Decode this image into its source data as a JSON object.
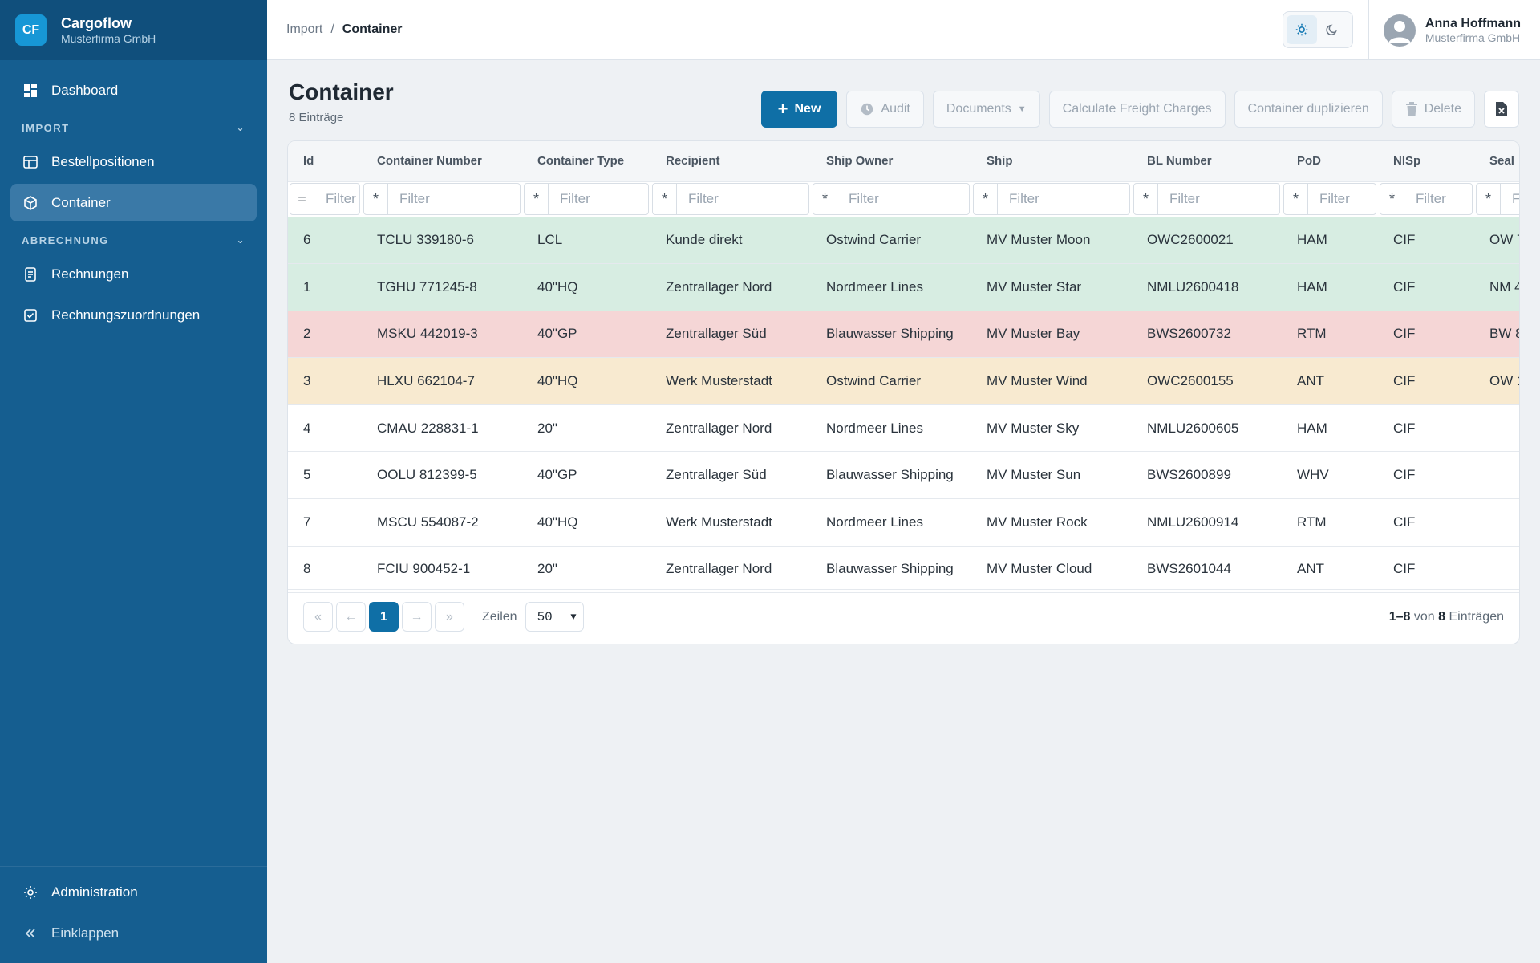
{
  "brand": {
    "logo": "CF",
    "name": "Cargoflow",
    "company": "Musterfirma GmbH"
  },
  "sidebar": {
    "dashboard": "Dashboard",
    "sections": [
      {
        "label": "IMPORT",
        "items": [
          "Bestellpositionen",
          "Container"
        ]
      },
      {
        "label": "ABRECHNUNG",
        "items": [
          "Rechnungen",
          "Rechnungszuordnungen"
        ]
      }
    ],
    "admin": "Administration",
    "collapse": "Einklappen"
  },
  "breadcrumb": {
    "parent": "Import",
    "separator": "/",
    "current": "Container"
  },
  "user": {
    "name": "Anna Hoffmann",
    "company": "Musterfirma GmbH"
  },
  "page": {
    "title": "Container",
    "count": "8 Einträge"
  },
  "toolbar": {
    "new": "New",
    "audit": "Audit",
    "documents": "Documents",
    "freight": "Calculate Freight Charges",
    "duplicate": "Container duplizieren",
    "delete": "Delete"
  },
  "table": {
    "columns": [
      "Id",
      "Container Number",
      "Container Type",
      "Recipient",
      "Ship Owner",
      "Ship",
      "BL Number",
      "PoD",
      "NlSp",
      "Seal"
    ],
    "filter_placeholder": "Filter",
    "filter_ops": [
      "=",
      "*",
      "*",
      "*",
      "*",
      "*",
      "*",
      "*",
      "*",
      "*"
    ],
    "rows": [
      {
        "status": "green",
        "cells": [
          "6",
          "TCLU 339180-6",
          "LCL",
          "Kunde direkt",
          "Ostwind Carrier",
          "MV Muster Moon",
          "OWC2600021",
          "HAM",
          "CIF",
          "OW 7"
        ]
      },
      {
        "status": "green",
        "cells": [
          "1",
          "TGHU 771245-8",
          "40\"HQ",
          "Zentrallager Nord",
          "Nordmeer Lines",
          "MV Muster Star",
          "NMLU2600418",
          "HAM",
          "CIF",
          "NM 4"
        ]
      },
      {
        "status": "red",
        "cells": [
          "2",
          "MSKU 442019-3",
          "40\"GP",
          "Zentrallager Süd",
          "Blauwasser Shipping",
          "MV Muster Bay",
          "BWS2600732",
          "RTM",
          "CIF",
          "BW 8"
        ]
      },
      {
        "status": "yellow",
        "cells": [
          "3",
          "HLXU 662104-7",
          "40\"HQ",
          "Werk Musterstadt",
          "Ostwind Carrier",
          "MV Muster Wind",
          "OWC2600155",
          "ANT",
          "CIF",
          "OW 1"
        ]
      },
      {
        "status": "none",
        "cells": [
          "4",
          "CMAU 228831-1",
          "20\"",
          "Zentrallager Nord",
          "Nordmeer Lines",
          "MV Muster Sky",
          "NMLU2600605",
          "HAM",
          "CIF",
          ""
        ]
      },
      {
        "status": "none",
        "cells": [
          "5",
          "OOLU 812399-5",
          "40\"GP",
          "Zentrallager Süd",
          "Blauwasser Shipping",
          "MV Muster Sun",
          "BWS2600899",
          "WHV",
          "CIF",
          ""
        ]
      },
      {
        "status": "none",
        "cells": [
          "7",
          "MSCU 554087-2",
          "40\"HQ",
          "Werk Musterstadt",
          "Nordmeer Lines",
          "MV Muster Rock",
          "NMLU2600914",
          "RTM",
          "CIF",
          ""
        ]
      },
      {
        "status": "none",
        "cells": [
          "8",
          "FCIU 900452-1",
          "20\"",
          "Zentrallager Nord",
          "Blauwasser Shipping",
          "MV Muster Cloud",
          "BWS2601044",
          "ANT",
          "CIF",
          ""
        ]
      }
    ]
  },
  "pager": {
    "current_page": "1",
    "rows_label": "Zeilen",
    "rows_value": "50",
    "range": "1–8",
    "of": "von",
    "total": "8",
    "entries": "Einträgen"
  }
}
